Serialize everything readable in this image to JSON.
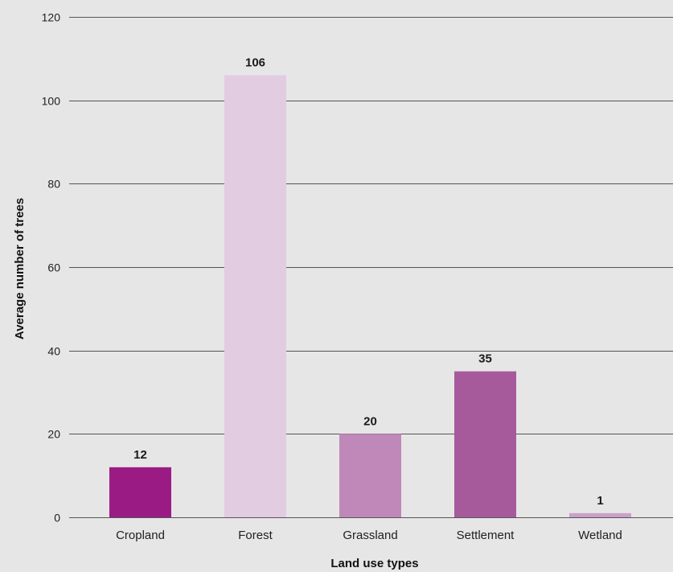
{
  "chart_data": {
    "type": "bar",
    "title": "",
    "xlabel": "Land use types",
    "ylabel": "Average number of trees",
    "categories": [
      "Cropland",
      "Forest",
      "Grassland",
      "Settlement",
      "Wetland"
    ],
    "values": [
      12,
      106,
      20,
      35,
      1
    ],
    "data_labels": [
      "12",
      "106",
      "20",
      "35",
      "1"
    ],
    "ylim": [
      0,
      120
    ],
    "yticks": [
      0,
      20,
      40,
      60,
      80,
      100,
      120
    ],
    "ytick_labels": [
      "0",
      "20",
      "40",
      "60",
      "80",
      "100",
      "120"
    ],
    "colors": [
      "#9b1b85",
      "#e2cce2",
      "#c088b8",
      "#a65a9c",
      "#caa0c8"
    ],
    "grid": true,
    "legend": "none"
  }
}
